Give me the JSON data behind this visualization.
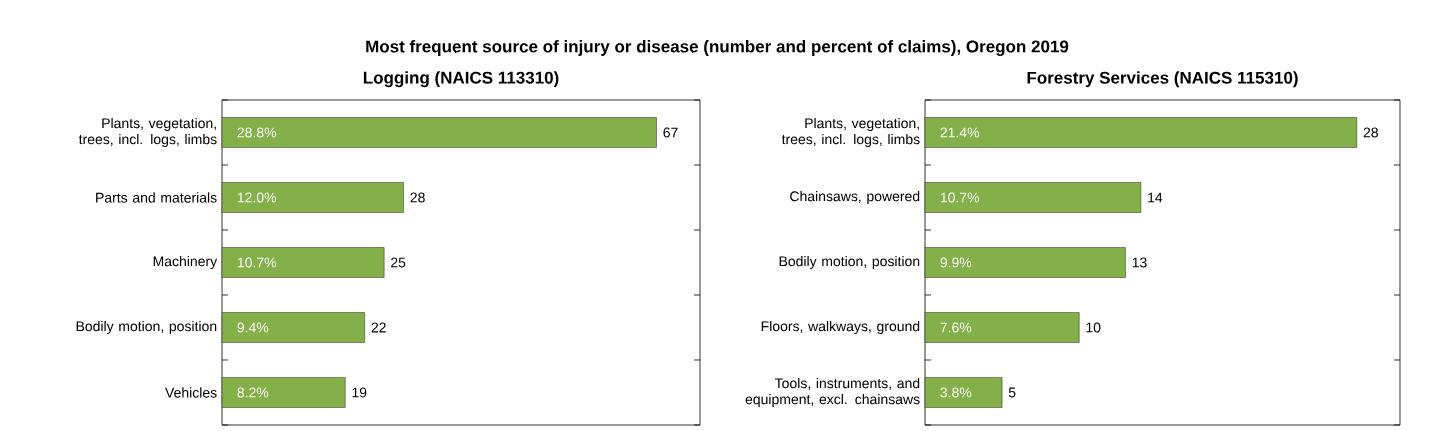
{
  "chart_data": [
    {
      "type": "bar",
      "orientation": "horizontal",
      "title": "Most frequent source of injury or disease (number and percent of claims), Oregon 2019",
      "subtitle": "Logging (NAICS 113310)",
      "categories": [
        "Plants, vegetation, trees, incl. logs, limbs",
        "Parts and materials",
        "Machinery",
        "Bodily motion, position",
        "Vehicles"
      ],
      "values": [
        67,
        28,
        25,
        22,
        19
      ],
      "color": "#84b04a",
      "data_labels": true,
      "annotations": [
        "28.8%",
        "12.0%",
        "10.7%",
        "9.4%",
        "8.2%"
      ]
    },
    {
      "type": "bar",
      "orientation": "horizontal",
      "subtitle": "Forestry Services (NAICS 115310)",
      "categories": [
        "Plants, vegetation, trees, incl. logs, limbs",
        "Chainsaws, powered",
        "Bodily motion, position",
        "Floors, walkways, ground",
        "Tools, instruments, and equipment, excl. chainsaws"
      ],
      "values": [
        28,
        14,
        13,
        10,
        5
      ],
      "color": "#84b04a",
      "data_labels": true,
      "annotations": [
        "21.4%",
        "10.7%",
        "9.9%",
        "7.6%",
        "3.8%"
      ]
    }
  ]
}
